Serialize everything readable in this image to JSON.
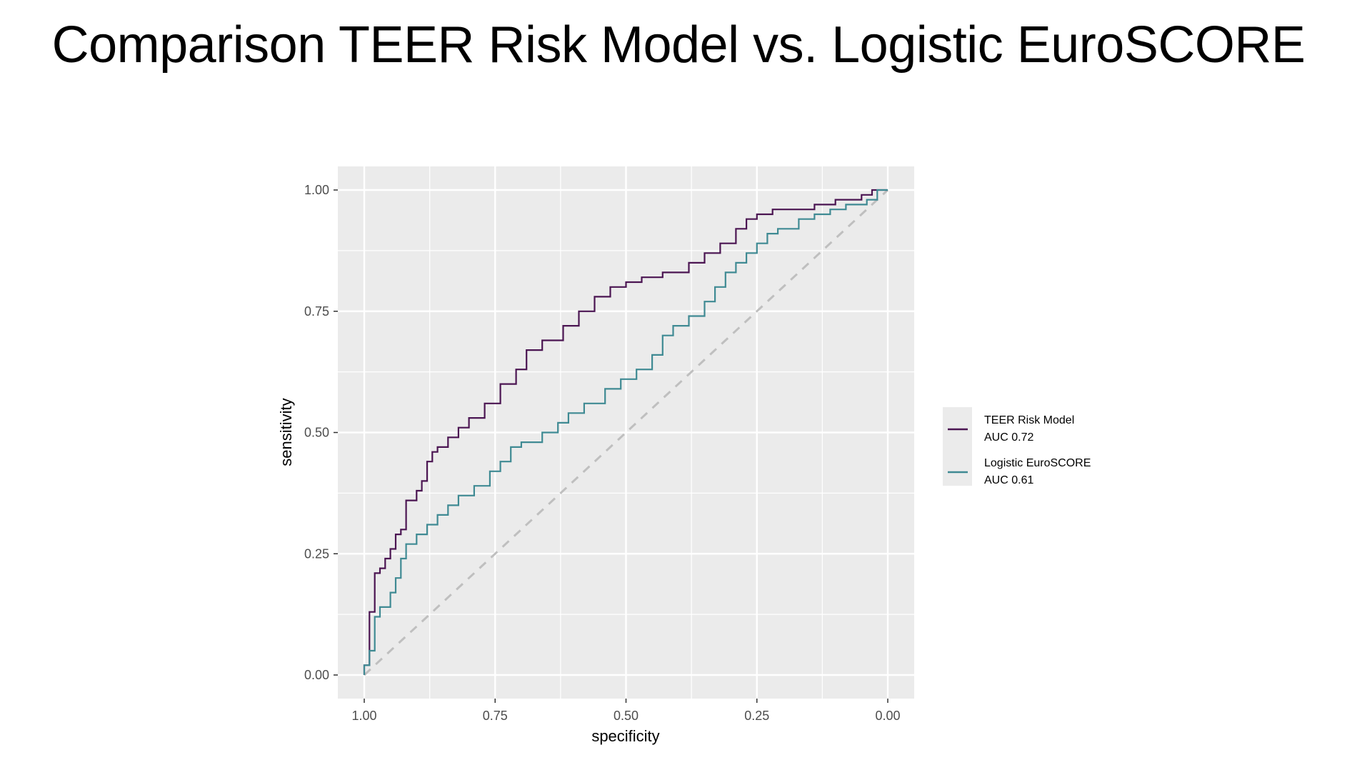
{
  "slide": {
    "title": "Comparison TEER Risk Model vs. Logistic EuroSCORE"
  },
  "chart_data": {
    "type": "line",
    "title": "",
    "xlabel": "specificity",
    "ylabel": "sensitivity",
    "xlim": [
      1.0,
      0.0
    ],
    "x_reversed": true,
    "ylim": [
      0.0,
      1.0
    ],
    "x_ticks": [
      "1.00",
      "0.75",
      "0.50",
      "0.25",
      "0.00"
    ],
    "y_ticks": [
      "0.00",
      "0.25",
      "0.50",
      "0.75",
      "1.00"
    ],
    "grid": true,
    "legend_position": "right",
    "reference_line": {
      "style": "dashed",
      "color": "#bfbfbf",
      "from": [
        1.0,
        0.0
      ],
      "to": [
        0.0,
        1.0
      ]
    },
    "series": [
      {
        "name": "TEER Risk Model\nAUC 0.72",
        "label_lines": [
          "TEER Risk Model",
          "AUC 0.72"
        ],
        "color": "#4b1552",
        "points": [
          [
            1.0,
            0.0
          ],
          [
            0.99,
            0.02
          ],
          [
            0.99,
            0.1
          ],
          [
            0.98,
            0.13
          ],
          [
            0.98,
            0.18
          ],
          [
            0.97,
            0.21
          ],
          [
            0.96,
            0.22
          ],
          [
            0.95,
            0.24
          ],
          [
            0.94,
            0.26
          ],
          [
            0.93,
            0.29
          ],
          [
            0.92,
            0.3
          ],
          [
            0.92,
            0.33
          ],
          [
            0.9,
            0.36
          ],
          [
            0.89,
            0.38
          ],
          [
            0.88,
            0.4
          ],
          [
            0.87,
            0.44
          ],
          [
            0.86,
            0.46
          ],
          [
            0.84,
            0.47
          ],
          [
            0.82,
            0.49
          ],
          [
            0.8,
            0.51
          ],
          [
            0.77,
            0.53
          ],
          [
            0.74,
            0.56
          ],
          [
            0.71,
            0.6
          ],
          [
            0.69,
            0.63
          ],
          [
            0.66,
            0.67
          ],
          [
            0.62,
            0.69
          ],
          [
            0.59,
            0.72
          ],
          [
            0.56,
            0.75
          ],
          [
            0.53,
            0.78
          ],
          [
            0.5,
            0.8
          ],
          [
            0.47,
            0.81
          ],
          [
            0.43,
            0.82
          ],
          [
            0.38,
            0.83
          ],
          [
            0.35,
            0.85
          ],
          [
            0.32,
            0.87
          ],
          [
            0.29,
            0.89
          ],
          [
            0.27,
            0.92
          ],
          [
            0.25,
            0.94
          ],
          [
            0.22,
            0.95
          ],
          [
            0.18,
            0.96
          ],
          [
            0.14,
            0.96
          ],
          [
            0.1,
            0.97
          ],
          [
            0.05,
            0.98
          ],
          [
            0.03,
            0.99
          ],
          [
            0.01,
            1.0
          ],
          [
            0.0,
            1.0
          ]
        ]
      },
      {
        "name": "Logistic EuroSCORE\nAUC 0.61",
        "label_lines": [
          "Logistic EuroSCORE",
          "AUC 0.61"
        ],
        "color": "#3f8a93",
        "points": [
          [
            1.0,
            0.0
          ],
          [
            0.99,
            0.02
          ],
          [
            0.98,
            0.05
          ],
          [
            0.98,
            0.1
          ],
          [
            0.97,
            0.12
          ],
          [
            0.95,
            0.14
          ],
          [
            0.94,
            0.17
          ],
          [
            0.93,
            0.2
          ],
          [
            0.92,
            0.24
          ],
          [
            0.9,
            0.27
          ],
          [
            0.88,
            0.29
          ],
          [
            0.86,
            0.31
          ],
          [
            0.84,
            0.33
          ],
          [
            0.82,
            0.35
          ],
          [
            0.79,
            0.37
          ],
          [
            0.76,
            0.39
          ],
          [
            0.74,
            0.42
          ],
          [
            0.72,
            0.44
          ],
          [
            0.7,
            0.47
          ],
          [
            0.66,
            0.48
          ],
          [
            0.63,
            0.5
          ],
          [
            0.61,
            0.52
          ],
          [
            0.58,
            0.54
          ],
          [
            0.54,
            0.56
          ],
          [
            0.51,
            0.59
          ],
          [
            0.48,
            0.61
          ],
          [
            0.45,
            0.63
          ],
          [
            0.43,
            0.66
          ],
          [
            0.41,
            0.7
          ],
          [
            0.38,
            0.72
          ],
          [
            0.35,
            0.74
          ],
          [
            0.33,
            0.77
          ],
          [
            0.31,
            0.8
          ],
          [
            0.29,
            0.83
          ],
          [
            0.27,
            0.85
          ],
          [
            0.25,
            0.87
          ],
          [
            0.23,
            0.89
          ],
          [
            0.21,
            0.91
          ],
          [
            0.17,
            0.92
          ],
          [
            0.14,
            0.94
          ],
          [
            0.11,
            0.95
          ],
          [
            0.08,
            0.96
          ],
          [
            0.04,
            0.97
          ],
          [
            0.02,
            0.98
          ],
          [
            0.01,
            1.0
          ],
          [
            0.0,
            1.0
          ]
        ]
      }
    ]
  }
}
